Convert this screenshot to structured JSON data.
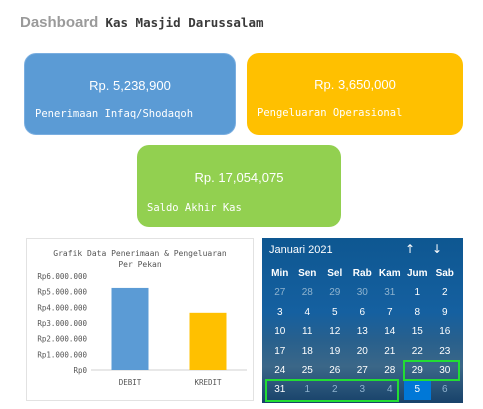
{
  "header": {
    "prefix": "Dashboard",
    "title": "Kas Masjid Darussalam"
  },
  "cards": [
    {
      "amount": "Rp. 5,238,900",
      "label": "Penerimaan Infaq/Shodaqoh",
      "color": "#5b9bd5"
    },
    {
      "amount": "Rp. 3,650,000",
      "label": "Pengeluaran Operasional",
      "color": "#ffc000"
    },
    {
      "amount": "Rp. 17,054,075",
      "label": "Saldo Akhir Kas",
      "color": "#92d050"
    }
  ],
  "chart_data": {
    "type": "bar",
    "title_lines": [
      "Grafik Data Penerimaan & Pengeluaran",
      "Per Pekan"
    ],
    "categories": [
      "DEBIT",
      "KREDIT"
    ],
    "values": [
      5238900,
      3650000
    ],
    "colors": [
      "#5b9bd5",
      "#ffc000"
    ],
    "ylim": [
      0,
      6000000
    ],
    "yticks": [
      0,
      1000000,
      2000000,
      3000000,
      4000000,
      5000000,
      6000000
    ],
    "ytick_labels": [
      "Rp0",
      "Rp1.000.000",
      "Rp2.000.000",
      "Rp3.000.000",
      "Rp4.000.000",
      "Rp5.000.000",
      "Rp6.000.000"
    ],
    "grid": false,
    "legend": "none"
  },
  "calendar": {
    "month_label": "Januari 2021",
    "nav_up": "↑",
    "nav_down": "↓",
    "weekdays": [
      "Min",
      "Sen",
      "Sel",
      "Rab",
      "Kam",
      "Jum",
      "Sab"
    ],
    "days": [
      {
        "d": "27",
        "dim": true
      },
      {
        "d": "28",
        "dim": true
      },
      {
        "d": "29",
        "dim": true
      },
      {
        "d": "30",
        "dim": true
      },
      {
        "d": "31",
        "dim": true
      },
      {
        "d": "1"
      },
      {
        "d": "2"
      },
      {
        "d": "3"
      },
      {
        "d": "4"
      },
      {
        "d": "5"
      },
      {
        "d": "6"
      },
      {
        "d": "7"
      },
      {
        "d": "8"
      },
      {
        "d": "9"
      },
      {
        "d": "10"
      },
      {
        "d": "11"
      },
      {
        "d": "12"
      },
      {
        "d": "13"
      },
      {
        "d": "14"
      },
      {
        "d": "15"
      },
      {
        "d": "16"
      },
      {
        "d": "17"
      },
      {
        "d": "18"
      },
      {
        "d": "19"
      },
      {
        "d": "20"
      },
      {
        "d": "21"
      },
      {
        "d": "22"
      },
      {
        "d": "23"
      },
      {
        "d": "24"
      },
      {
        "d": "25"
      },
      {
        "d": "26"
      },
      {
        "d": "27"
      },
      {
        "d": "28"
      },
      {
        "d": "29"
      },
      {
        "d": "30"
      },
      {
        "d": "31"
      },
      {
        "d": "1",
        "dim": true
      },
      {
        "d": "2",
        "dim": true
      },
      {
        "d": "3",
        "dim": true
      },
      {
        "d": "4",
        "dim": true
      },
      {
        "d": "5",
        "selected": true
      },
      {
        "d": "6",
        "dim": true
      }
    ],
    "highlight_color": "#22dd33"
  }
}
